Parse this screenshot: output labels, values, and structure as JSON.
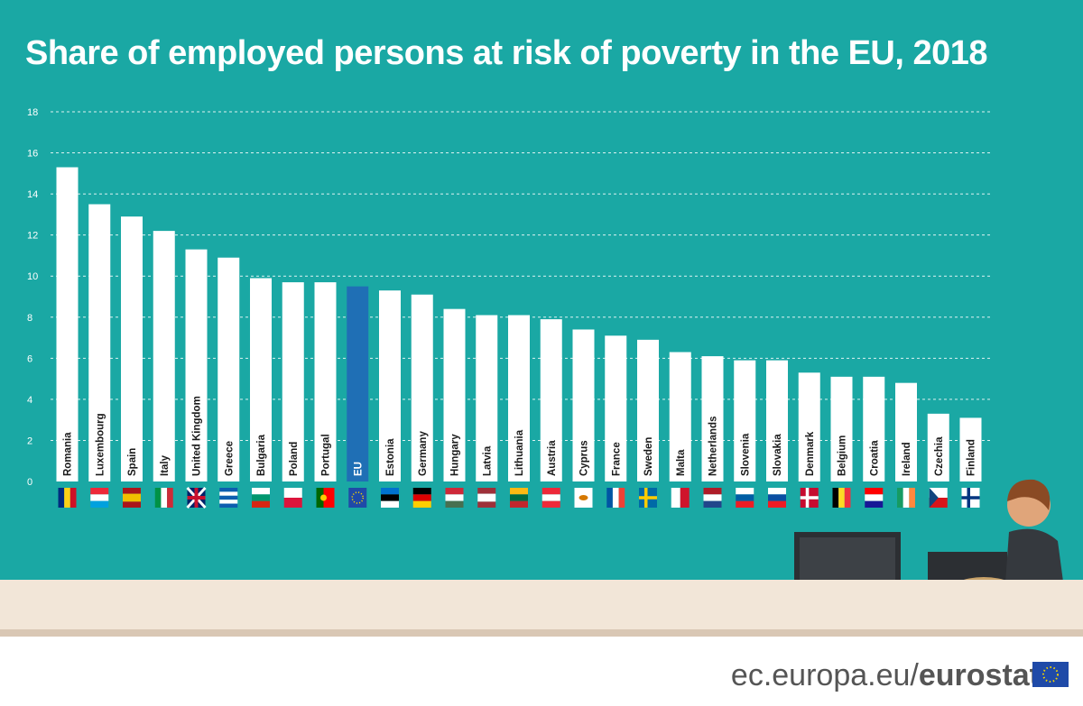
{
  "title": "Share of employed persons at risk of poverty in the EU, 2018",
  "footer": {
    "site": "ec.europa.eu/",
    "brand": "eurostat"
  },
  "colors": {
    "background": "#1aa8a4",
    "bar": "#ffffff",
    "highlight": "#1f6fb5",
    "floor": "#f2e6d8"
  },
  "chart_data": {
    "type": "bar",
    "title": "Share of employed persons at risk of poverty in the EU, 2018",
    "xlabel": "",
    "ylabel": "",
    "ylim": [
      0,
      18
    ],
    "yticks": [
      0,
      2,
      4,
      6,
      8,
      10,
      12,
      14,
      16,
      18
    ],
    "grid": true,
    "highlight": "EU",
    "categories": [
      "Romania",
      "Luxembourg",
      "Spain",
      "Italy",
      "United Kingdom",
      "Greece",
      "Bulgaria",
      "Poland",
      "Portugal",
      "EU",
      "Estonia",
      "Germany",
      "Hungary",
      "Latvia",
      "Lithuania",
      "Austria",
      "Cyprus",
      "France",
      "Sweden",
      "Malta",
      "Netherlands",
      "Slovenia",
      "Slovakia",
      "Denmark",
      "Belgium",
      "Croatia",
      "Ireland",
      "Czechia",
      "Finland"
    ],
    "values": [
      15.3,
      13.5,
      12.9,
      12.2,
      11.3,
      10.9,
      9.9,
      9.7,
      9.7,
      9.5,
      9.3,
      9.1,
      8.4,
      8.1,
      8.1,
      7.9,
      7.4,
      7.1,
      6.9,
      6.3,
      6.1,
      5.9,
      5.9,
      5.3,
      5.1,
      5.1,
      4.8,
      3.3,
      3.1
    ]
  }
}
